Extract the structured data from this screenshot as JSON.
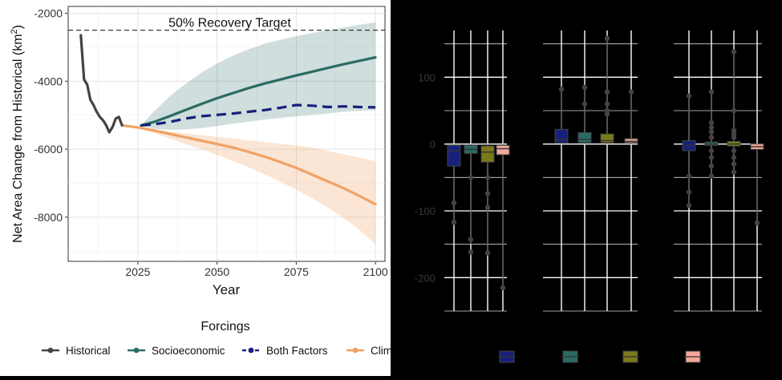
{
  "chart_data": [
    {
      "type": "line",
      "title": "",
      "xlabel": "Year",
      "ylabel": "Net Area Change from Historical (km",
      "ylabel_sup": "2",
      "ylabel_close": ")",
      "xlim": [
        2003,
        2103
      ],
      "ylim": [
        -9300,
        -1800
      ],
      "x_ticks": [
        "2025",
        "2050",
        "2075",
        "2100"
      ],
      "x_tick_values": [
        2025,
        2050,
        2075,
        2100
      ],
      "y_ticks": [
        "-2000",
        "-4000",
        "-6000",
        "-8000"
      ],
      "y_tick_values": [
        -2000,
        -4000,
        -6000,
        -8000
      ],
      "grid": true,
      "annotation": {
        "text": "50% Recovery Target",
        "y": -2500
      },
      "legend": {
        "title": "Forcings",
        "placement": "bottom",
        "entries": [
          "Historical",
          "Socioeconomic",
          "Both Factors",
          "Climate"
        ]
      },
      "colors": {
        "Historical": "#444444",
        "Socioeconomic": "#2a6b64",
        "Both Factors": "#17207a",
        "Climate": "#f0a266"
      },
      "series": [
        {
          "name": "Historical",
          "x": [
            2007,
            2008,
            2009,
            2010,
            2011,
            2012,
            2013,
            2014,
            2015,
            2016,
            2017,
            2018,
            2019,
            2020
          ],
          "y": [
            -2650,
            -3950,
            -4100,
            -4550,
            -4700,
            -4900,
            -5050,
            -5150,
            -5300,
            -5500,
            -5350,
            -5100,
            -5050,
            -5300
          ]
        },
        {
          "name": "Socioeconomic",
          "x": [
            2026,
            2030,
            2035,
            2040,
            2045,
            2050,
            2055,
            2060,
            2065,
            2070,
            2075,
            2080,
            2085,
            2090,
            2095,
            2100
          ],
          "y": [
            -5300,
            -5200,
            -5030,
            -4850,
            -4670,
            -4500,
            -4350,
            -4200,
            -4070,
            -3950,
            -3830,
            -3720,
            -3610,
            -3500,
            -3400,
            -3300
          ],
          "band_upper": [
            -5300,
            -4900,
            -4450,
            -4080,
            -3750,
            -3480,
            -3250,
            -3060,
            -2900,
            -2780,
            -2680,
            -2580,
            -2500,
            -2420,
            -2340,
            -2270
          ],
          "band_lower": [
            -5300,
            -5400,
            -5430,
            -5420,
            -5380,
            -5320,
            -5250,
            -5190,
            -5130,
            -5080,
            -5030,
            -4990,
            -4950,
            -4900,
            -4870,
            -4850
          ]
        },
        {
          "name": "Both Factors",
          "x": [
            2026,
            2030,
            2035,
            2040,
            2045,
            2050,
            2055,
            2060,
            2065,
            2070,
            2075,
            2080,
            2085,
            2090,
            2095,
            2100
          ],
          "y": [
            -5300,
            -5270,
            -5200,
            -5100,
            -5030,
            -4990,
            -4950,
            -4900,
            -4850,
            -4780,
            -4700,
            -4720,
            -4760,
            -4740,
            -4760,
            -4770
          ]
        },
        {
          "name": "Climate",
          "x": [
            2020,
            2025,
            2030,
            2035,
            2040,
            2045,
            2050,
            2055,
            2060,
            2065,
            2070,
            2075,
            2080,
            2085,
            2090,
            2095,
            2100
          ],
          "y": [
            -5300,
            -5360,
            -5450,
            -5550,
            -5650,
            -5750,
            -5850,
            -5950,
            -6080,
            -6220,
            -6380,
            -6550,
            -6750,
            -6950,
            -7150,
            -7380,
            -7620
          ],
          "band_upper": [
            -5300,
            -5350,
            -5400,
            -5480,
            -5540,
            -5590,
            -5640,
            -5690,
            -5740,
            -5790,
            -5840,
            -5890,
            -5950,
            -6050,
            -6150,
            -6250,
            -6350
          ],
          "band_lower": [
            -5300,
            -5380,
            -5520,
            -5680,
            -5850,
            -6000,
            -6170,
            -6340,
            -6530,
            -6740,
            -6960,
            -7190,
            -7440,
            -7720,
            -8020,
            -8380,
            -8800
          ]
        }
      ]
    },
    {
      "type": "boxplot",
      "title": "",
      "xlabel": "",
      "ylabel": "",
      "ylim": [
        -250,
        170
      ],
      "y_ticks": [
        "100",
        "0",
        "-100",
        "-200"
      ],
      "y_tick_values": [
        100,
        0,
        -100,
        -200
      ],
      "grid": true,
      "legend_placement": "bottom",
      "colors": [
        "#17207a",
        "#2a6b64",
        "#7a7a1a",
        "#f4a79a"
      ],
      "panels": [
        {
          "boxes": [
            {
              "q1": -33,
              "median": -10,
              "q3": -2,
              "whisker_low": -120,
              "whisker_high": 0,
              "outliers": [
                -88,
                -117
              ]
            },
            {
              "q1": -14,
              "median": -8,
              "q3": -2,
              "whisker_low": -150,
              "whisker_high": 0,
              "outliers": [
                -50,
                -143,
                -162
              ]
            },
            {
              "q1": -27,
              "median": -12,
              "q3": -3,
              "whisker_low": -165,
              "whisker_high": 0,
              "outliers": [
                -50,
                -74,
                -95,
                -163
              ]
            },
            {
              "q1": -16,
              "median": -7,
              "q3": -2,
              "whisker_low": -215,
              "whisker_high": 0,
              "outliers": [
                -215
              ]
            }
          ]
        },
        {
          "boxes": [
            {
              "q1": 2,
              "median": 7,
              "q3": 22,
              "whisker_low": 0,
              "whisker_high": 82,
              "outliers": [
                82
              ]
            },
            {
              "q1": 2,
              "median": 7,
              "q3": 17,
              "whisker_low": 0,
              "whisker_high": 85,
              "outliers": [
                60,
                85
              ]
            },
            {
              "q1": 2,
              "median": 5,
              "q3": 15,
              "whisker_low": 0,
              "whisker_high": 158,
              "outliers": [
                45,
                50,
                60,
                78,
                158
              ]
            },
            {
              "q1": 2,
              "median": 4,
              "q3": 8,
              "whisker_low": 0,
              "whisker_high": 78,
              "outliers": [
                78
              ]
            }
          ]
        },
        {
          "boxes": [
            {
              "q1": -10,
              "median": -2,
              "q3": 5,
              "whisker_low": -95,
              "whisker_high": 72,
              "outliers": [
                72,
                -48,
                -72,
                -92
              ]
            },
            {
              "q1": -2,
              "median": 0,
              "q3": 3,
              "whisker_low": -48,
              "whisker_high": 78,
              "outliers": [
                78,
                32,
                25,
                18,
                10,
                -10,
                -20,
                -33,
                -48
              ]
            },
            {
              "q1": -3,
              "median": 0,
              "q3": 4,
              "whisker_low": -45,
              "whisker_high": 138,
              "outliers": [
                138,
                50,
                20,
                15,
                10,
                -10,
                -20,
                -30,
                -42
              ]
            },
            {
              "q1": -8,
              "median": -4,
              "q3": 0,
              "whisker_low": -118,
              "whisker_high": 0,
              "outliers": [
                -118
              ]
            }
          ]
        }
      ]
    }
  ]
}
